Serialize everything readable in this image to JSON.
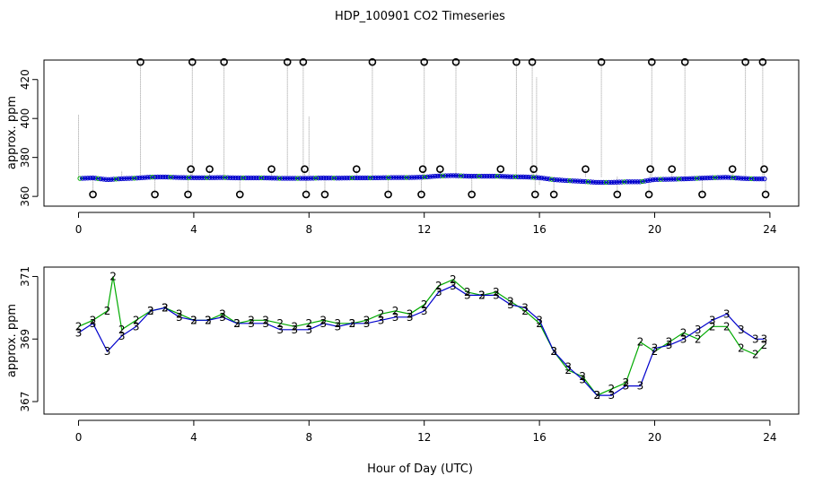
{
  "title": "HDP_100901  CO2 Timeseries",
  "xlabel": "Hour of Day (UTC)",
  "colors": {
    "blue": "#0000cc",
    "green": "#00aa00",
    "grey": "#999999",
    "black": "#000000",
    "cyan": "#00c8ff"
  },
  "chart_data": [
    {
      "type": "scatter",
      "title": "HDP_100901  CO2 Timeseries",
      "xlabel": "",
      "ylabel": "approx. ppm",
      "xlim": [
        -1.2,
        25.0
      ],
      "ylim": [
        355,
        430
      ],
      "xticks": [
        0,
        4,
        8,
        12,
        16,
        20,
        24
      ],
      "yticks": [
        360,
        380,
        400,
        420
      ],
      "series": [
        {
          "marker": "circle",
          "x": [
            0.5,
            2.15,
            2.65,
            3.8,
            3.9,
            3.95,
            4.55,
            5.05,
            5.6,
            6.7,
            7.25,
            7.8,
            7.85,
            7.9,
            8.55,
            9.65,
            10.2,
            10.75,
            11.9,
            11.95,
            12.0,
            12.55,
            13.1,
            13.65,
            14.65,
            15.2,
            15.75,
            15.8,
            15.85,
            16.5,
            17.6,
            18.15,
            18.7,
            19.8,
            19.85,
            19.9,
            20.6,
            21.05,
            21.65,
            22.7,
            23.15,
            23.75,
            23.8,
            23.85
          ],
          "y": [
            361,
            429,
            361,
            361,
            374,
            429,
            374,
            429,
            361,
            374,
            429,
            429,
            374,
            361,
            361,
            374,
            429,
            361,
            361,
            374,
            429,
            374,
            429,
            361,
            374,
            429,
            429,
            374,
            361,
            361,
            374,
            429,
            361,
            361,
            374,
            429,
            374,
            429,
            361,
            374,
            429,
            429,
            374,
            361
          ]
        }
      ],
      "series_background": "dense blue/green timeseries near 368-371 ppm with grey vertical spikes"
    },
    {
      "type": "line",
      "xlabel": "Hour of Day (UTC)",
      "ylabel": "approx. ppm",
      "xlim": [
        -1.2,
        25.0
      ],
      "ylim": [
        366.6,
        371.3
      ],
      "xticks": [
        0,
        4,
        8,
        12,
        16,
        20,
        24
      ],
      "yticks": [
        367,
        369,
        371
      ],
      "series": [
        {
          "marker": "3",
          "x": [
            0.0,
            0.5,
            1.0,
            1.5,
            2.0,
            2.5,
            3.0,
            3.5,
            4.0,
            4.5,
            5.0,
            5.5,
            6.0,
            6.5,
            7.0,
            7.5,
            8.0,
            8.5,
            9.0,
            9.5,
            10.0,
            10.5,
            11.0,
            11.5,
            12.0,
            12.5,
            13.0,
            13.5,
            14.0,
            14.5,
            15.0,
            15.5,
            16.0,
            16.5,
            17.0,
            17.5,
            18.0,
            18.5,
            19.0,
            19.5,
            20.0,
            20.5,
            21.0,
            21.5,
            22.0,
            22.5,
            23.0,
            23.5,
            23.8
          ],
          "y": [
            369.2,
            369.5,
            368.6,
            369.1,
            369.4,
            369.9,
            370.0,
            369.7,
            369.6,
            369.6,
            369.7,
            369.5,
            369.5,
            369.5,
            369.3,
            369.3,
            369.3,
            369.5,
            369.4,
            369.5,
            369.5,
            369.6,
            369.7,
            369.7,
            369.9,
            370.5,
            370.7,
            370.4,
            370.4,
            370.4,
            370.1,
            370.0,
            369.6,
            368.6,
            368.1,
            367.7,
            367.2,
            367.2,
            367.5,
            367.5,
            368.7,
            368.8,
            369.0,
            369.3,
            369.6,
            369.8,
            369.3,
            369.0,
            369.0
          ]
        },
        {
          "marker": "2",
          "x": [
            0.0,
            0.5,
            1.0,
            1.2,
            1.5,
            2.0,
            2.5,
            3.0,
            3.5,
            4.0,
            4.5,
            5.0,
            5.5,
            6.0,
            6.5,
            7.0,
            7.5,
            8.0,
            8.5,
            9.0,
            9.5,
            10.0,
            10.5,
            11.0,
            11.5,
            12.0,
            12.5,
            13.0,
            13.5,
            14.0,
            14.5,
            15.0,
            15.5,
            16.0,
            16.5,
            17.0,
            17.5,
            18.0,
            18.5,
            19.0,
            19.5,
            20.0,
            20.5,
            21.0,
            21.5,
            22.0,
            22.5,
            23.0,
            23.5,
            23.8
          ],
          "y": [
            369.4,
            369.6,
            369.9,
            371.0,
            369.3,
            369.6,
            369.9,
            370.0,
            369.8,
            369.6,
            369.6,
            369.8,
            369.5,
            369.6,
            369.6,
            369.5,
            369.4,
            369.5,
            369.6,
            369.5,
            369.5,
            369.6,
            369.8,
            369.9,
            369.8,
            370.1,
            370.7,
            370.9,
            370.5,
            370.4,
            370.5,
            370.2,
            369.9,
            369.5,
            368.6,
            368.0,
            367.8,
            367.2,
            367.4,
            367.6,
            368.9,
            368.6,
            368.9,
            369.2,
            369.0,
            369.4,
            369.4,
            368.7,
            368.5,
            368.8
          ]
        }
      ]
    }
  ]
}
